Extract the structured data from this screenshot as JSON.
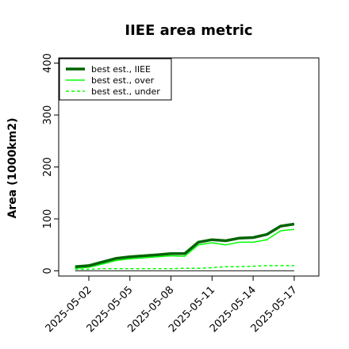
{
  "chart_data": {
    "type": "line",
    "title": "IIEE area metric",
    "xlabel": "",
    "ylabel": "Area (1000km2)",
    "ylim": [
      -10,
      410
    ],
    "yticks": [
      0,
      100,
      200,
      300,
      400
    ],
    "xticks": [
      "2025-05-02",
      "2025-05-05",
      "2025-05-08",
      "2025-05-11",
      "2025-05-14",
      "2025-05-17"
    ],
    "x": [
      "2025-05-01",
      "2025-05-02",
      "2025-05-03",
      "2025-05-04",
      "2025-05-05",
      "2025-05-06",
      "2025-05-07",
      "2025-05-08",
      "2025-05-09",
      "2025-05-10",
      "2025-05-11",
      "2025-05-12",
      "2025-05-13",
      "2025-05-14",
      "2025-05-15",
      "2025-05-16",
      "2025-05-17"
    ],
    "legend_position": "top-left",
    "grid": false,
    "series": [
      {
        "name": "best est., IIEE",
        "color": "#006400",
        "style": "solid-thick",
        "values": [
          8,
          10,
          17,
          24,
          27,
          29,
          31,
          33,
          33,
          55,
          60,
          58,
          63,
          64,
          70,
          86,
          90
        ]
      },
      {
        "name": "best est., over",
        "color": "#00ff00",
        "style": "solid",
        "values": [
          5,
          7,
          13,
          20,
          23,
          25,
          27,
          29,
          28,
          50,
          54,
          50,
          55,
          55,
          60,
          77,
          80
        ]
      },
      {
        "name": "best est., under",
        "color": "#00ff00",
        "style": "dashed",
        "values": [
          3,
          3,
          4,
          4,
          4,
          4,
          4,
          4,
          5,
          5,
          6,
          8,
          8,
          9,
          10,
          10,
          10
        ]
      }
    ]
  }
}
